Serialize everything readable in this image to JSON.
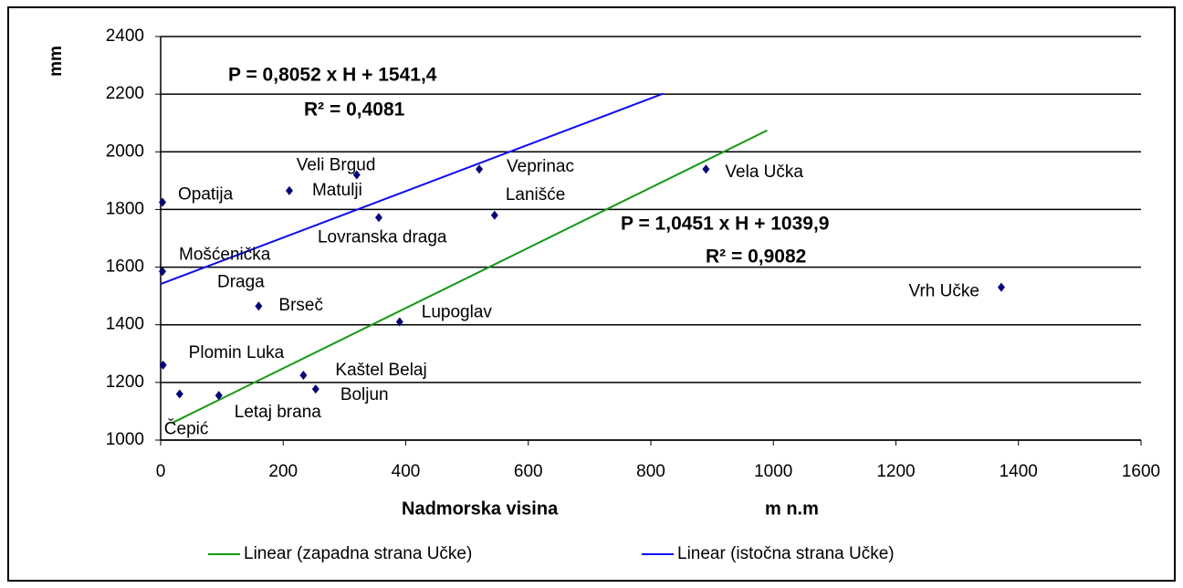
{
  "chart_data": {
    "type": "scatter",
    "y_axis_label": "mm",
    "x_axis_label": "Nadmorska visina",
    "x_axis_unit": "m n.m",
    "xlim": [
      0,
      1600
    ],
    "xticks": [
      0,
      200,
      400,
      600,
      800,
      1000,
      1200,
      1400,
      1600
    ],
    "ylim": [
      1000,
      2400
    ],
    "yticks": [
      1000,
      1200,
      1400,
      1600,
      1800,
      2000,
      2200,
      2400
    ],
    "grid": true,
    "legend": "bottom",
    "points": {
      "color": "#000080",
      "names": [
        "Opatija",
        "Veli Brgud",
        "Matulji",
        "Veprinac",
        "Lanišće",
        "Vela Učka",
        "Lovranska draga",
        "Mošćenička Draga",
        "Brseč",
        "Lupoglav",
        "Vrh Učke",
        "Plomin Luka",
        "Kaštel Belaj",
        "Boljun",
        "Letaj brana",
        "Čepić"
      ],
      "label_colors": [
        "#000000",
        "#000000",
        "#ff2020",
        "#ff2020",
        "#ff2020",
        "#ff2020",
        "#ff2020",
        "#ff2020",
        "#ff2020",
        "#000000",
        "#000000",
        "#ff2020",
        "#000000",
        "#000000",
        "#000000",
        "#000000"
      ],
      "x": [
        3,
        320,
        210,
        520,
        545,
        890,
        356,
        3,
        160,
        390,
        1372,
        4,
        233,
        253,
        95,
        31
      ],
      "values": [
        1825,
        1920,
        1865,
        1940,
        1780,
        1940,
        1772,
        1585,
        1465,
        1410,
        1530,
        1260,
        1225,
        1177,
        1155,
        1160
      ]
    },
    "series": [
      {
        "name": "Linear (zapadna strana Učke)",
        "color": "#129a12",
        "x": [
          20,
          990
        ],
        "values": [
          1060.8,
          2074.5
        ]
      },
      {
        "name": "Linear (istočna strana Učke)",
        "color": "#0a0aff",
        "x": [
          0,
          820
        ],
        "values": [
          1541.4,
          2201.7
        ]
      }
    ],
    "annotations": [
      {
        "text": "P = 0,8052 x H + 1541,4",
        "color": "#0a0aff"
      },
      {
        "text": "R² = 0,4081",
        "color": "#0a0aff"
      },
      {
        "text": "P = 1,0451 x H + 1039,9",
        "color": "#129a12"
      },
      {
        "text": "R² = 0,9082",
        "color": "#129a12"
      }
    ]
  }
}
